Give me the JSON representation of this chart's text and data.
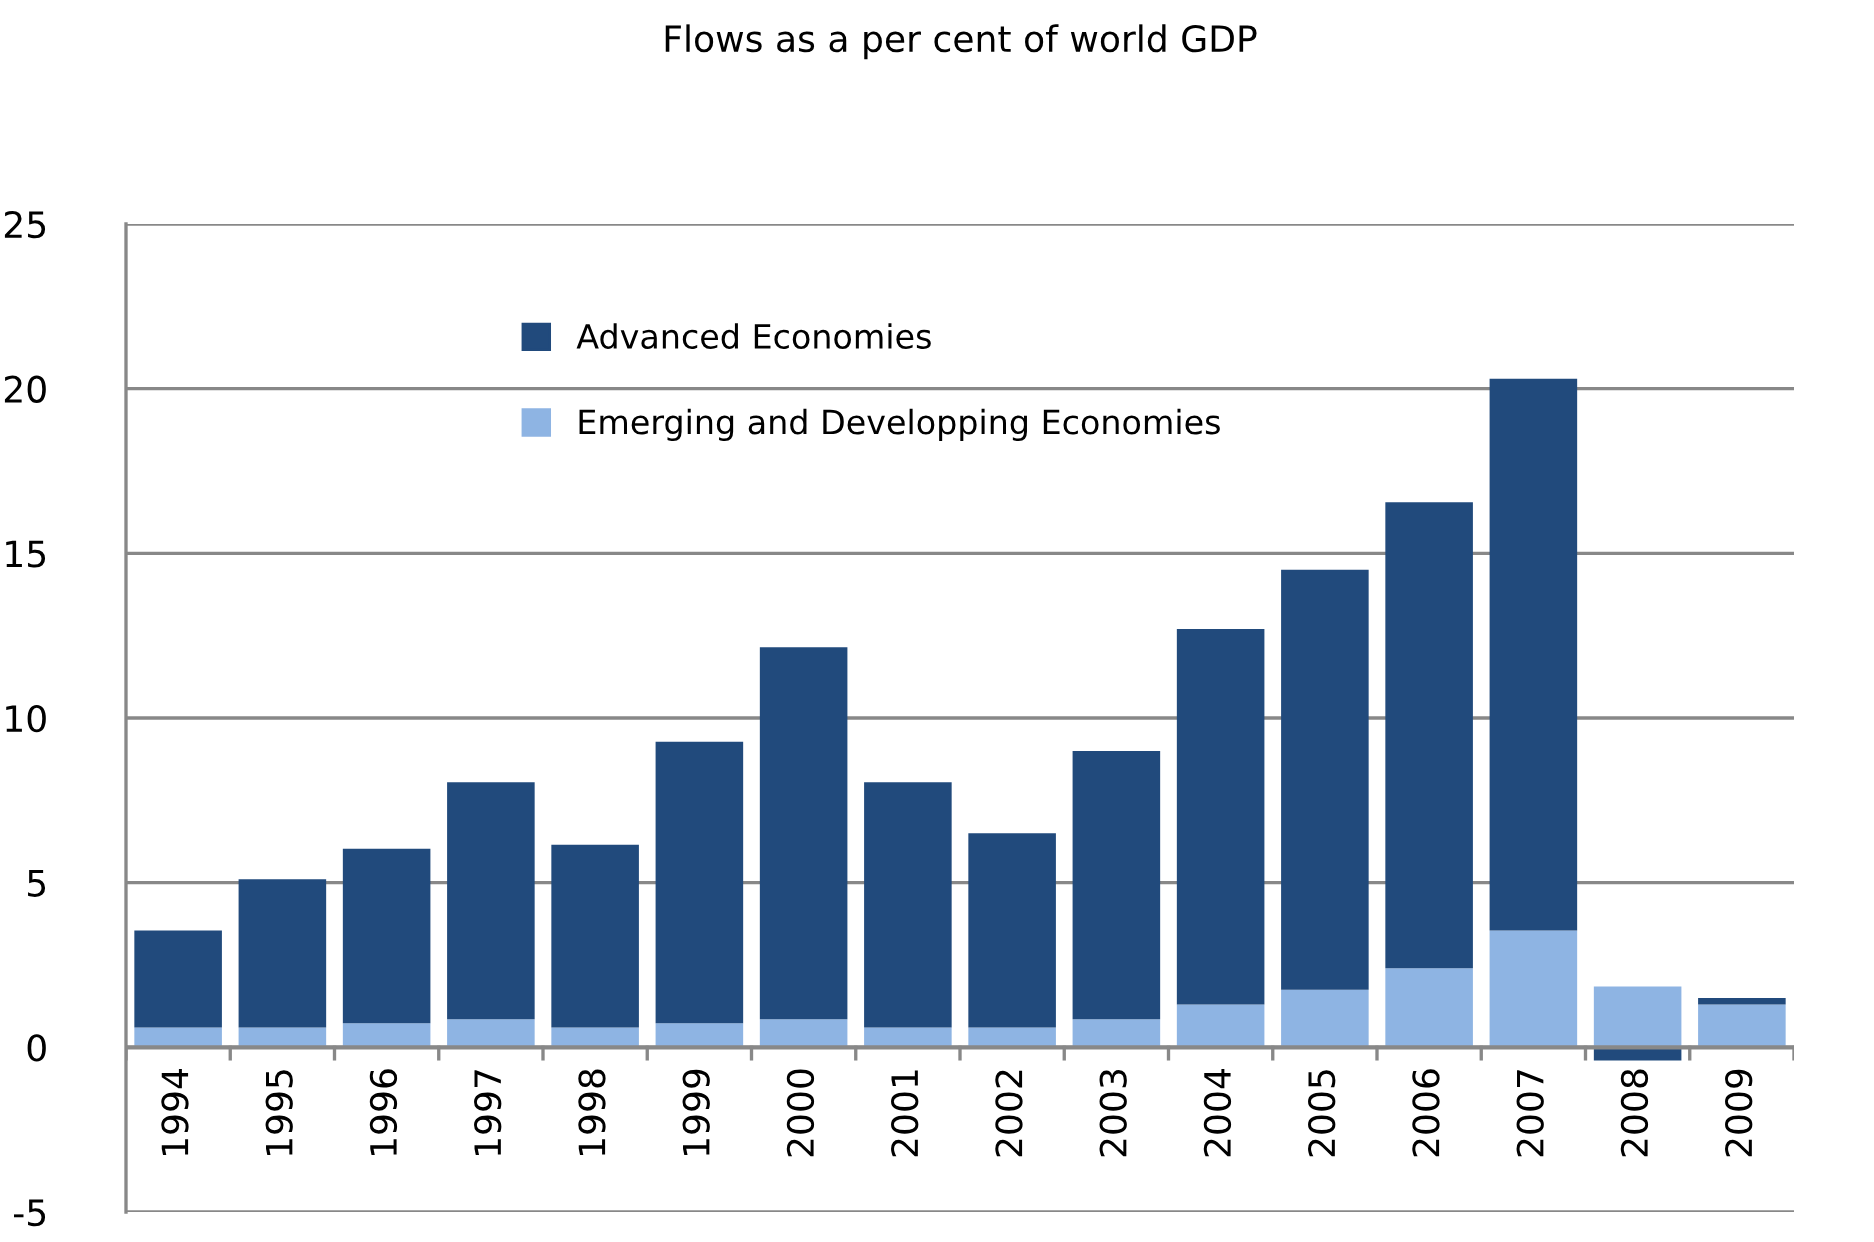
{
  "chart_data": {
    "type": "bar",
    "stacked": true,
    "title": "Flows as a per cent of world GDP",
    "categories": [
      "1994",
      "1995",
      "1996",
      "1997",
      "1998",
      "1999",
      "2000",
      "2001",
      "2002",
      "2003",
      "2004",
      "2005",
      "2006",
      "2007",
      "2008",
      "2009"
    ],
    "series": [
      {
        "name": "Emerging and Developping Economies",
        "color": "#8eb4e3",
        "values": [
          0.6,
          0.6,
          0.73,
          0.85,
          0.6,
          0.73,
          0.85,
          0.6,
          0.6,
          0.85,
          1.3,
          1.75,
          2.4,
          3.55,
          1.85,
          1.3
        ]
      },
      {
        "name": "Advanced Economies",
        "color": "#214a7c",
        "values": [
          2.95,
          4.5,
          5.3,
          7.2,
          5.55,
          8.55,
          11.3,
          7.45,
          5.9,
          8.15,
          11.4,
          12.75,
          14.15,
          16.75,
          -0.4,
          0.2
        ]
      }
    ],
    "ylim": [
      -5,
      25
    ],
    "yticks": [
      -5,
      0,
      5,
      10,
      15,
      20,
      25
    ],
    "grid": "y",
    "legend": "top left"
  }
}
